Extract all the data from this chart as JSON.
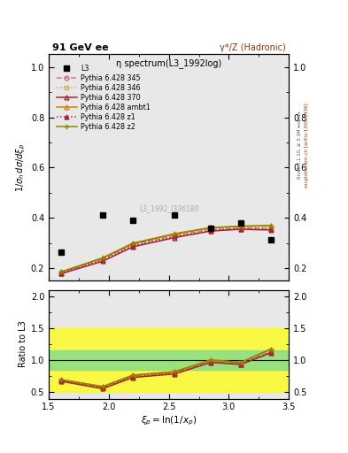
{
  "title_left": "91 GeV ee",
  "title_right": "γ*/Z (Hadronic)",
  "plot_title": "η spectrum(L3_1992log)",
  "xlabel": "$\\xi_p=\\ln(1/x_p)$",
  "ylabel_main": "$1/\\sigma_h\\,d\\sigma/d\\xi_p$",
  "ylabel_ratio": "Ratio to L3",
  "watermark": "L3_1992_I336180",
  "right_label": "Rivet 3.1.10, ≥ 3.1M events",
  "right_label2": "mcplots.cern.ch [arXiv:1306.3436]",
  "data_x": [
    1.6,
    1.95,
    2.2,
    2.55,
    2.85,
    3.1,
    3.35
  ],
  "data_y": [
    0.265,
    0.41,
    0.39,
    0.41,
    0.36,
    0.38,
    0.315
  ],
  "xi_vals": [
    1.6,
    1.95,
    2.2,
    2.55,
    2.85,
    3.1,
    3.35
  ],
  "py345_y": [
    0.183,
    0.237,
    0.295,
    0.33,
    0.355,
    0.36,
    0.36
  ],
  "py346_y": [
    0.183,
    0.237,
    0.295,
    0.33,
    0.355,
    0.362,
    0.362
  ],
  "py370_y": [
    0.178,
    0.228,
    0.285,
    0.322,
    0.348,
    0.355,
    0.352
  ],
  "pyambt1_y": [
    0.185,
    0.242,
    0.3,
    0.338,
    0.362,
    0.367,
    0.37
  ],
  "pyz1_y": [
    0.18,
    0.233,
    0.29,
    0.326,
    0.35,
    0.357,
    0.355
  ],
  "pyz2_y": [
    0.185,
    0.241,
    0.298,
    0.336,
    0.361,
    0.367,
    0.37
  ],
  "ratio345": [
    0.69,
    0.578,
    0.757,
    0.805,
    0.986,
    0.947,
    1.143
  ],
  "ratio346": [
    0.69,
    0.578,
    0.757,
    0.805,
    0.986,
    0.952,
    1.149
  ],
  "ratio370": [
    0.672,
    0.556,
    0.731,
    0.786,
    0.967,
    0.934,
    1.117
  ],
  "ratioambt1": [
    0.698,
    0.59,
    0.769,
    0.824,
    1.006,
    0.966,
    1.175
  ],
  "ratioz1": [
    0.679,
    0.568,
    0.744,
    0.795,
    0.972,
    0.939,
    1.127
  ],
  "ratioz2": [
    0.698,
    0.588,
    0.764,
    0.82,
    1.003,
    0.966,
    1.175
  ],
  "color_345": "#cc7788",
  "color_346": "#ccaa44",
  "color_370": "#aa2233",
  "color_ambt1": "#cc8800",
  "color_z1": "#aa2233",
  "color_z2": "#888800",
  "xlim": [
    1.5,
    3.5
  ],
  "ylim_main": [
    0.15,
    1.05
  ],
  "ylim_ratio": [
    0.4,
    2.1
  ],
  "bg_color": "#e8e8e8"
}
